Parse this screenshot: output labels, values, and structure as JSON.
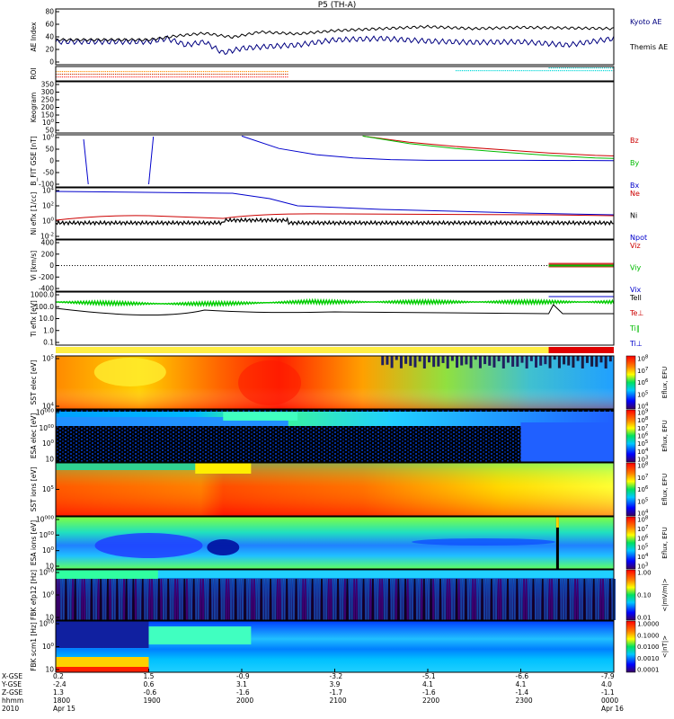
{
  "title": "P5 (TH-A)",
  "chart_data": [
    {
      "type": "line",
      "ylabel": "AE Index",
      "yticks": [
        "0",
        "20",
        "40",
        "60",
        "80"
      ],
      "ylim": [
        0,
        85
      ],
      "series": [
        {
          "name": "Kyoto AE",
          "color": "#000080",
          "x": [
            19.0,
            19.2,
            19.4,
            19.6,
            19.8,
            20.0,
            20.3,
            20.6,
            21.0,
            21.5,
            22.0,
            22.5,
            23.0,
            23.5,
            24.0
          ],
          "values": [
            35,
            40,
            30,
            35,
            18,
            25,
            28,
            30,
            38,
            40,
            36,
            34,
            35,
            30,
            40
          ]
        },
        {
          "name": "Themis AE",
          "color": "#000000",
          "x": [
            19.0,
            19.3,
            19.6,
            19.9,
            20.2,
            20.6,
            21.0,
            21.5,
            22.0,
            22.5,
            23.0,
            23.5,
            24.0
          ],
          "values": [
            38,
            44,
            48,
            42,
            50,
            47,
            52,
            55,
            58,
            55,
            57,
            56,
            55
          ]
        }
      ]
    },
    {
      "type": "scatter",
      "ylabel": "ROI",
      "yticks": []
    },
    {
      "type": "heatmap",
      "ylabel": "Keogram",
      "yticks": [
        "50",
        "100",
        "150",
        "200",
        "250",
        "300",
        "350"
      ]
    },
    {
      "type": "line",
      "ylabel": "B_FIT GSE [nT]",
      "yticks": [
        "-100",
        "-50",
        "0",
        "50",
        "100"
      ],
      "ylim": [
        -105,
        105
      ],
      "series": [
        {
          "name": "Bz",
          "color": "#cc0000",
          "x": [
            21.3,
            21.8,
            22.3,
            22.8,
            23.3,
            23.8,
            24.0
          ],
          "values": [
            100,
            75,
            58,
            45,
            32,
            22,
            20
          ]
        },
        {
          "name": "By",
          "color": "#00bb00",
          "x": [
            21.3,
            21.8,
            22.3,
            22.8,
            23.3,
            23.8,
            24.0
          ],
          "values": [
            100,
            70,
            50,
            35,
            22,
            12,
            10
          ]
        },
        {
          "name": "Bx",
          "color": "#0000cc",
          "x": [
            20.0,
            20.4,
            20.8,
            21.2,
            21.6,
            22.0,
            23.0,
            24.0
          ],
          "values": [
            100,
            50,
            25,
            12,
            5,
            2,
            2,
            1
          ]
        }
      ]
    },
    {
      "type": "line",
      "ylabel": "Ni eflx [1/cc]",
      "yticks": [
        "10-2",
        "100",
        "102",
        "104"
      ],
      "series": [
        {
          "name": "Ne",
          "color": "#cc0000"
        },
        {
          "name": "Ni",
          "color": "#000000"
        },
        {
          "name": "Npot",
          "color": "#0000cc"
        }
      ]
    },
    {
      "type": "line",
      "ylabel": "Vi [km/s]",
      "yticks": [
        "-400",
        "-200",
        "0",
        "200",
        "400"
      ],
      "series": [
        {
          "name": "Viz",
          "color": "#cc0000"
        },
        {
          "name": "Viy",
          "color": "#00bb00"
        },
        {
          "name": "Vix",
          "color": "#0000cc"
        }
      ]
    },
    {
      "type": "line",
      "ylabel": "Ti eflx [eV]",
      "yticks": [
        "0.1",
        "1.0",
        "10.0",
        "100.0",
        "1000.0"
      ],
      "series": [
        {
          "name": "Tell",
          "color": "#000000"
        },
        {
          "name": "Te⊥",
          "color": "#cc0000"
        },
        {
          "name": "Ti∥",
          "color": "#00bb00"
        },
        {
          "name": "Ti⊥",
          "color": "#0000cc"
        }
      ]
    },
    {
      "type": "heatmap",
      "ylabel": "SST elec [eV]",
      "yticks": [
        "104",
        "105"
      ],
      "colorbar": {
        "label": "Eflux, EFU",
        "ticks": [
          "104",
          "105",
          "106",
          "107",
          "108"
        ]
      }
    },
    {
      "type": "heatmap",
      "ylabel": "ESA elec [eV]",
      "yticks": [
        "10",
        "100",
        "1000",
        "10000"
      ],
      "colorbar": {
        "label": "Eflux, EFU",
        "ticks": [
          "103",
          "104",
          "105",
          "106",
          "107",
          "108",
          "109"
        ]
      }
    },
    {
      "type": "heatmap",
      "ylabel": "SST ions [eV]",
      "yticks": [
        "105"
      ],
      "colorbar": {
        "label": "Eflux, EFU",
        "ticks": [
          "104",
          "105",
          "106",
          "107",
          "108"
        ]
      }
    },
    {
      "type": "heatmap",
      "ylabel": "ESA ions [eV]",
      "yticks": [
        "10",
        "100",
        "1000",
        "10000"
      ],
      "colorbar": {
        "label": "Eflux, EFU",
        "ticks": [
          "103",
          "104",
          "105",
          "106",
          "107",
          "108"
        ]
      }
    },
    {
      "type": "heatmap",
      "ylabel": "FBK efp12 [Hz]",
      "yticks": [
        "10",
        "100",
        "1000"
      ],
      "colorbar": {
        "label": "<|mV/m|>",
        "ticks": [
          "0.01",
          "0.10",
          "1.00"
        ]
      }
    },
    {
      "type": "heatmap",
      "ylabel": "FBK scm1 [Hz]",
      "yticks": [
        "10",
        "100",
        "1000"
      ],
      "colorbar": {
        "label": "<|nT|>",
        "ticks": [
          "0.0001",
          "0.0010",
          "0.0100",
          "0.1000",
          "1.0000"
        ]
      }
    }
  ],
  "time_axis": {
    "row_labels": [
      "X-GSE",
      "Y-GSE",
      "Z-GSE",
      "hhmm",
      "2010"
    ],
    "ticks": [
      {
        "x": "0.2",
        "y": "-2.4",
        "z": "1.3",
        "t": "1800",
        "d": "Apr 15"
      },
      {
        "x": "1.5",
        "y": "0.6",
        "z": "-0.6",
        "t": "1900",
        "d": ""
      },
      {
        "x": "-0.9",
        "y": "3.1",
        "z": "-1.6",
        "t": "2000",
        "d": ""
      },
      {
        "x": "-3.2",
        "y": "3.9",
        "z": "-1.7",
        "t": "2100",
        "d": ""
      },
      {
        "x": "-5.1",
        "y": "4.1",
        "z": "-1.6",
        "t": "2200",
        "d": ""
      },
      {
        "x": "-6.6",
        "y": "4.1",
        "z": "-1.4",
        "t": "2300",
        "d": ""
      },
      {
        "x": "-7.9",
        "y": "4.0",
        "z": "-1.1",
        "t": "0000",
        "d": "Apr 16"
      }
    ]
  }
}
